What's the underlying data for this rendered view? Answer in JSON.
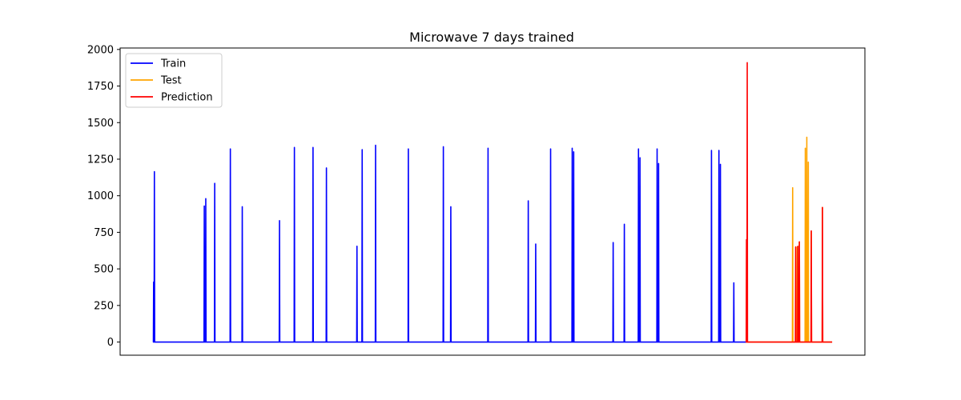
{
  "chart_data": {
    "type": "line",
    "title": "Microwave 7 days trained",
    "xlabel": "",
    "ylabel": "",
    "xlim": [
      0,
      1000
    ],
    "ylim": [
      -90,
      2010
    ],
    "yticks": [
      0,
      250,
      500,
      750,
      1000,
      1250,
      1500,
      1750,
      2000
    ],
    "ytick_labels": [
      "0",
      "250",
      "500",
      "750",
      "1000",
      "1250",
      "1500",
      "1750",
      "2000"
    ],
    "xticks_visible": false,
    "grid": false,
    "legend_position": "top-left",
    "series": [
      {
        "name": "Train",
        "color": "#0000ff",
        "range": [
          45,
          841
        ],
        "spikes": [
          [
            45,
            410
          ],
          [
            46,
            1165
          ],
          [
            113,
            930
          ],
          [
            115,
            980
          ],
          [
            127,
            1085
          ],
          [
            148,
            1320
          ],
          [
            164,
            925
          ],
          [
            214,
            830
          ],
          [
            234,
            1330
          ],
          [
            259,
            1330
          ],
          [
            277,
            1190
          ],
          [
            318,
            655
          ],
          [
            325,
            1315
          ],
          [
            343,
            1345
          ],
          [
            387,
            1320
          ],
          [
            434,
            1335
          ],
          [
            444,
            925
          ],
          [
            494,
            1325
          ],
          [
            548,
            965
          ],
          [
            558,
            670
          ],
          [
            578,
            1320
          ],
          [
            607,
            1325
          ],
          [
            609,
            1300
          ],
          [
            662,
            680
          ],
          [
            677,
            805
          ],
          [
            696,
            1320
          ],
          [
            698,
            1260
          ],
          [
            721,
            1320
          ],
          [
            723,
            1220
          ],
          [
            794,
            1310
          ],
          [
            804,
            1310
          ],
          [
            806,
            1215
          ],
          [
            824,
            405
          ]
        ]
      },
      {
        "name": "Test",
        "color": "#ffa500",
        "range": [
          841,
          956
        ],
        "spikes": [
          [
            903,
            1055
          ],
          [
            909,
            650
          ],
          [
            912,
            685
          ],
          [
            920,
            1325
          ],
          [
            922,
            1400
          ],
          [
            924,
            1230
          ],
          [
            928,
            755
          ],
          [
            943,
            920
          ]
        ]
      },
      {
        "name": "Prediction",
        "color": "#ff0000",
        "range": [
          841,
          956
        ],
        "spikes": [
          [
            841,
            700
          ],
          [
            842,
            1910
          ],
          [
            907,
            650
          ],
          [
            910,
            655
          ],
          [
            912,
            685
          ],
          [
            928,
            760
          ],
          [
            943,
            920
          ]
        ]
      }
    ]
  }
}
